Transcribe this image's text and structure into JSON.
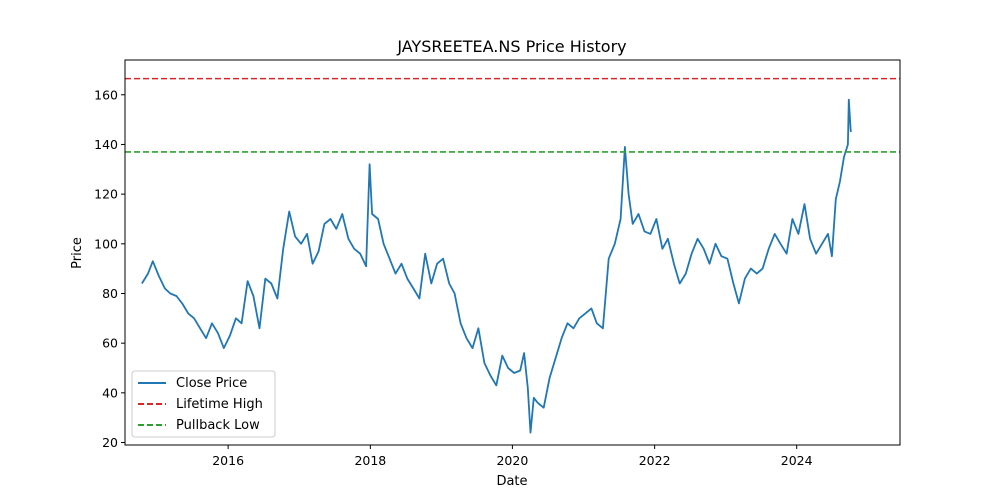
{
  "chart_data": {
    "type": "line",
    "title": "JAYSREETEA.NS Price History",
    "xlabel": "Date",
    "ylabel": "Price",
    "xlim": [
      "2014-07-20",
      "2025-06-15"
    ],
    "ylim": [
      19,
      174
    ],
    "x_ticks": [
      {
        "date": "2016-01-01",
        "label": "2016"
      },
      {
        "date": "2018-01-01",
        "label": "2018"
      },
      {
        "date": "2020-01-01",
        "label": "2020"
      },
      {
        "date": "2022-01-01",
        "label": "2022"
      },
      {
        "date": "2024-01-01",
        "label": "2024"
      }
    ],
    "y_ticks": [
      20,
      40,
      60,
      80,
      100,
      120,
      140,
      160
    ],
    "grid": false,
    "legend_position": "lower-left",
    "series": [
      {
        "name": "Close Price",
        "color": "#1f77b4",
        "style": "solid",
        "points": [
          [
            "2014-10-15",
            84
          ],
          [
            "2014-11-15",
            88
          ],
          [
            "2014-12-10",
            93
          ],
          [
            "2015-01-10",
            87
          ],
          [
            "2015-02-10",
            82
          ],
          [
            "2015-03-10",
            80
          ],
          [
            "2015-04-10",
            79
          ],
          [
            "2015-05-10",
            76
          ],
          [
            "2015-06-10",
            72
          ],
          [
            "2015-07-10",
            70
          ],
          [
            "2015-08-10",
            66
          ],
          [
            "2015-09-10",
            62
          ],
          [
            "2015-10-10",
            68
          ],
          [
            "2015-11-10",
            64
          ],
          [
            "2015-12-10",
            58
          ],
          [
            "2016-01-10",
            63
          ],
          [
            "2016-02-10",
            70
          ],
          [
            "2016-03-10",
            68
          ],
          [
            "2016-04-10",
            85
          ],
          [
            "2016-05-10",
            79
          ],
          [
            "2016-06-10",
            66
          ],
          [
            "2016-07-10",
            86
          ],
          [
            "2016-08-10",
            84
          ],
          [
            "2016-09-10",
            78
          ],
          [
            "2016-10-10",
            98
          ],
          [
            "2016-11-10",
            113
          ],
          [
            "2016-12-10",
            103
          ],
          [
            "2017-01-10",
            100
          ],
          [
            "2017-02-10",
            104
          ],
          [
            "2017-03-10",
            92
          ],
          [
            "2017-04-10",
            97
          ],
          [
            "2017-05-10",
            108
          ],
          [
            "2017-06-10",
            110
          ],
          [
            "2017-07-10",
            106
          ],
          [
            "2017-08-10",
            112
          ],
          [
            "2017-09-10",
            102
          ],
          [
            "2017-10-10",
            98
          ],
          [
            "2017-11-10",
            96
          ],
          [
            "2017-12-10",
            91
          ],
          [
            "2017-12-28",
            132
          ],
          [
            "2018-01-10",
            112
          ],
          [
            "2018-02-10",
            110
          ],
          [
            "2018-03-10",
            100
          ],
          [
            "2018-04-10",
            94
          ],
          [
            "2018-05-10",
            88
          ],
          [
            "2018-06-10",
            92
          ],
          [
            "2018-07-10",
            86
          ],
          [
            "2018-08-10",
            82
          ],
          [
            "2018-09-10",
            78
          ],
          [
            "2018-10-10",
            96
          ],
          [
            "2018-11-10",
            84
          ],
          [
            "2018-12-10",
            92
          ],
          [
            "2019-01-10",
            94
          ],
          [
            "2019-02-10",
            84
          ],
          [
            "2019-03-10",
            80
          ],
          [
            "2019-04-10",
            68
          ],
          [
            "2019-05-10",
            62
          ],
          [
            "2019-06-10",
            58
          ],
          [
            "2019-07-10",
            66
          ],
          [
            "2019-08-10",
            52
          ],
          [
            "2019-09-10",
            47
          ],
          [
            "2019-10-10",
            43
          ],
          [
            "2019-11-10",
            55
          ],
          [
            "2019-12-10",
            50
          ],
          [
            "2020-01-10",
            48
          ],
          [
            "2020-02-10",
            49
          ],
          [
            "2020-03-01",
            56
          ],
          [
            "2020-03-20",
            42
          ],
          [
            "2020-04-03",
            24
          ],
          [
            "2020-04-20",
            38
          ],
          [
            "2020-05-10",
            36
          ],
          [
            "2020-06-10",
            34
          ],
          [
            "2020-07-10",
            46
          ],
          [
            "2020-08-10",
            54
          ],
          [
            "2020-09-10",
            62
          ],
          [
            "2020-10-10",
            68
          ],
          [
            "2020-11-10",
            66
          ],
          [
            "2020-12-10",
            70
          ],
          [
            "2021-01-10",
            72
          ],
          [
            "2021-02-10",
            74
          ],
          [
            "2021-03-10",
            68
          ],
          [
            "2021-04-10",
            66
          ],
          [
            "2021-05-10",
            94
          ],
          [
            "2021-06-10",
            100
          ],
          [
            "2021-07-10",
            110
          ],
          [
            "2021-08-01",
            139
          ],
          [
            "2021-08-20",
            120
          ],
          [
            "2021-09-10",
            108
          ],
          [
            "2021-10-10",
            112
          ],
          [
            "2021-11-10",
            105
          ],
          [
            "2021-12-10",
            104
          ],
          [
            "2022-01-10",
            110
          ],
          [
            "2022-02-10",
            98
          ],
          [
            "2022-03-10",
            102
          ],
          [
            "2022-04-10",
            92
          ],
          [
            "2022-05-10",
            84
          ],
          [
            "2022-06-10",
            88
          ],
          [
            "2022-07-10",
            96
          ],
          [
            "2022-08-10",
            102
          ],
          [
            "2022-09-10",
            98
          ],
          [
            "2022-10-10",
            92
          ],
          [
            "2022-11-10",
            100
          ],
          [
            "2022-12-10",
            95
          ],
          [
            "2023-01-10",
            94
          ],
          [
            "2023-02-10",
            84
          ],
          [
            "2023-03-10",
            76
          ],
          [
            "2023-04-10",
            86
          ],
          [
            "2023-05-10",
            90
          ],
          [
            "2023-06-10",
            88
          ],
          [
            "2023-07-10",
            90
          ],
          [
            "2023-08-10",
            98
          ],
          [
            "2023-09-10",
            104
          ],
          [
            "2023-10-10",
            100
          ],
          [
            "2023-11-10",
            96
          ],
          [
            "2023-12-10",
            110
          ],
          [
            "2024-01-10",
            104
          ],
          [
            "2024-02-10",
            116
          ],
          [
            "2024-03-10",
            102
          ],
          [
            "2024-04-10",
            96
          ],
          [
            "2024-05-10",
            100
          ],
          [
            "2024-06-10",
            104
          ],
          [
            "2024-06-30",
            95
          ],
          [
            "2024-07-20",
            118
          ],
          [
            "2024-08-10",
            125
          ],
          [
            "2024-08-31",
            135
          ],
          [
            "2024-09-20",
            140
          ],
          [
            "2024-09-25",
            158
          ],
          [
            "2024-10-05",
            145
          ]
        ]
      },
      {
        "name": "Lifetime High",
        "color": "#d62728",
        "style": "dashed",
        "y": 166.5
      },
      {
        "name": "Pullback Low",
        "color": "#2ca02c",
        "style": "dashed",
        "y": 137
      }
    ]
  }
}
